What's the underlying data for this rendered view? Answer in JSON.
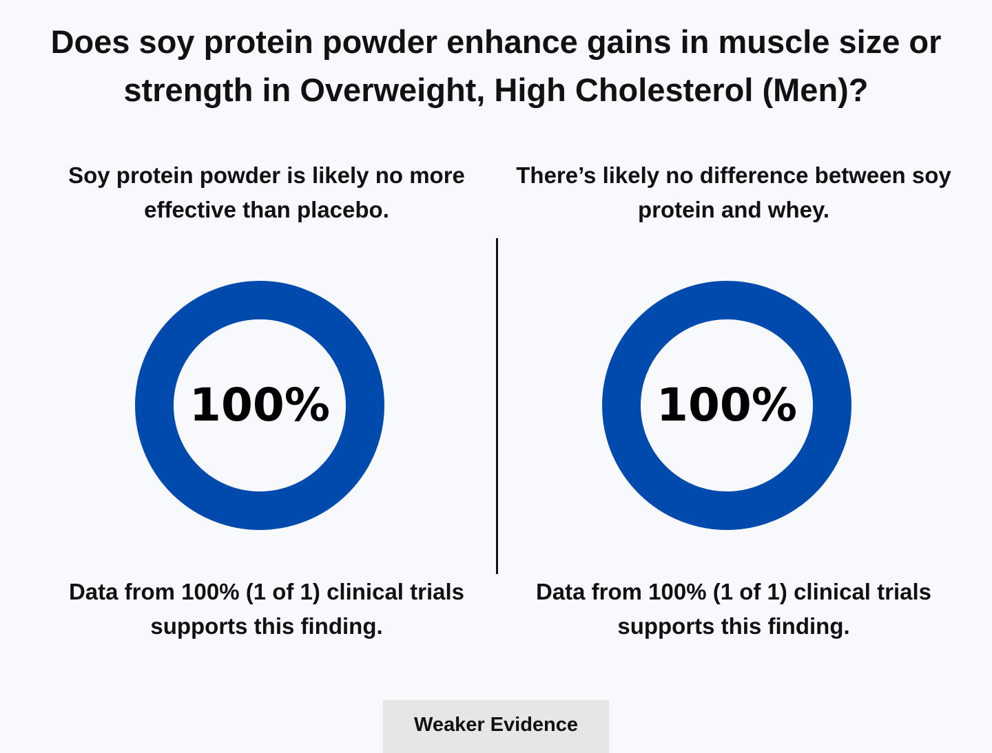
{
  "title": "Does soy protein powder enhance gains in muscle size or strength in Overweight, High Cholesterol (Men)?",
  "colors": {
    "ring": "#004aad",
    "background": "#f7f9fc",
    "badge": "#e6e6e6"
  },
  "chart_data": [
    {
      "type": "pie",
      "title": "Soy protein powder is likely no more effective than placebo.",
      "values": [
        100
      ],
      "center_label": "100%",
      "footer": "Data from 100% (1 of 1) clinical trials supports this finding."
    },
    {
      "type": "pie",
      "title": "There’s likely no difference between soy protein and whey.",
      "values": [
        100
      ],
      "center_label": "100%",
      "footer": "Data from 100% (1 of 1) clinical trials supports this finding."
    }
  ],
  "evidence_badge": "Weaker Evidence"
}
